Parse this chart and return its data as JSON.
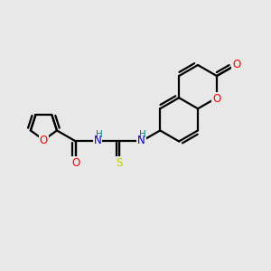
{
  "background_color": "#e8e8e8",
  "bond_color": "#000000",
  "oxygen_color": "#ff0000",
  "nitrogen_color": "#0000cc",
  "nitrogen_h_color": "#008080",
  "sulfur_color": "#cccc00",
  "line_width": 1.6,
  "font_size_atom": 8.5,
  "fig_width": 3.0,
  "fig_height": 3.0,
  "dpi": 100,
  "xlim": [
    0,
    10
  ],
  "ylim": [
    0,
    10
  ]
}
